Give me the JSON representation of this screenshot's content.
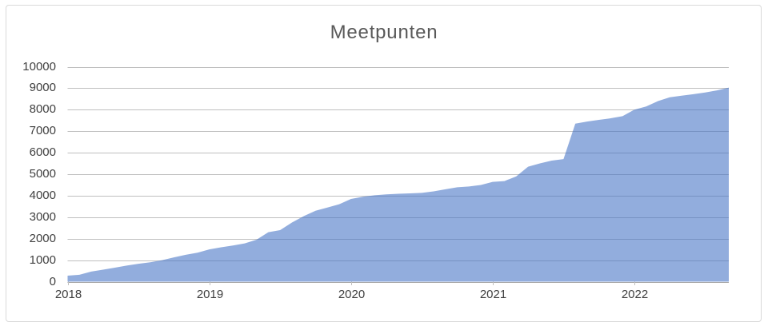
{
  "chart_data": {
    "type": "area",
    "title": "Meetpunten",
    "xlabel": "",
    "ylabel": "",
    "ylim": [
      0,
      10000
    ],
    "y_tick_step": 1000,
    "grid": true,
    "legend": false,
    "y_tick_labels": [
      "10000",
      "9000",
      "8000",
      "7000",
      "6000",
      "5000",
      "4000",
      "3000",
      "2000",
      "1000",
      "0"
    ],
    "x_tick_labels": [
      "2018",
      "2019",
      "2020",
      "2021",
      "2022"
    ],
    "x_interval": "month",
    "x_start": "2018-01",
    "x_end": "2022-09",
    "x": [
      "2018-01",
      "2018-02",
      "2018-03",
      "2018-04",
      "2018-05",
      "2018-06",
      "2018-07",
      "2018-08",
      "2018-09",
      "2018-10",
      "2018-11",
      "2018-12",
      "2019-01",
      "2019-02",
      "2019-03",
      "2019-04",
      "2019-05",
      "2019-06",
      "2019-07",
      "2019-08",
      "2019-09",
      "2019-10",
      "2019-11",
      "2019-12",
      "2020-01",
      "2020-02",
      "2020-03",
      "2020-04",
      "2020-05",
      "2020-06",
      "2020-07",
      "2020-08",
      "2020-09",
      "2020-10",
      "2020-11",
      "2020-12",
      "2021-01",
      "2021-02",
      "2021-03",
      "2021-04",
      "2021-05",
      "2021-06",
      "2021-07",
      "2021-08",
      "2021-09",
      "2021-10",
      "2021-11",
      "2021-12",
      "2022-01",
      "2022-02",
      "2022-03",
      "2022-04",
      "2022-05",
      "2022-06",
      "2022-07",
      "2022-08",
      "2022-09"
    ],
    "series": [
      {
        "name": "Meetpunten",
        "values": [
          280,
          320,
          470,
          560,
          650,
          750,
          830,
          900,
          1000,
          1130,
          1250,
          1350,
          1500,
          1600,
          1680,
          1780,
          1950,
          2300,
          2400,
          2750,
          3050,
          3300,
          3450,
          3600,
          3850,
          3950,
          4020,
          4060,
          4090,
          4110,
          4130,
          4200,
          4300,
          4390,
          4430,
          4500,
          4640,
          4680,
          4900,
          5350,
          5500,
          5630,
          5700,
          7350,
          7450,
          7530,
          7600,
          7700,
          8000,
          8150,
          8400,
          8580,
          8650,
          8720,
          8800,
          8900,
          9030
        ]
      }
    ],
    "colors": {
      "area_fill_base": "#4472C4",
      "area_fill_rgba": "rgba(68,114,196,0.58)",
      "area_fill_apparent": "#8FAADC",
      "gridline": "#BFBFBF",
      "axis_line": "#A6A6A6",
      "tick_mark": "#BFBFBF",
      "label": "#404040",
      "title": "#595959",
      "frame_border": "#D9D9D9"
    }
  }
}
